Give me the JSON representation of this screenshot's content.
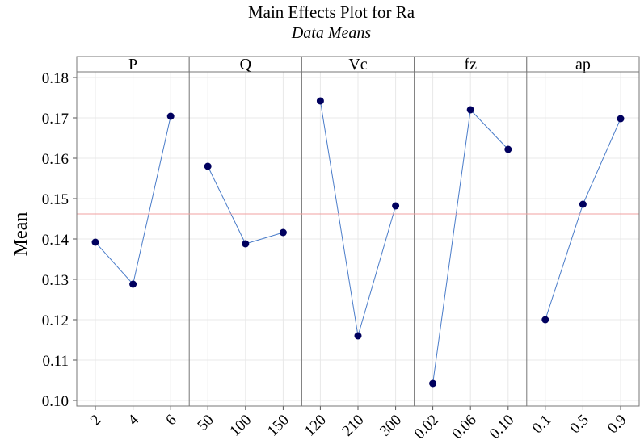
{
  "chart_data": {
    "type": "line",
    "title": "Main Effects Plot for Ra",
    "subtitle": "Data Means",
    "ylabel": "Mean",
    "ylim": [
      0.0986,
      0.1814
    ],
    "yticks": [
      {
        "value": 0.1,
        "label": "0.10"
      },
      0.11,
      0.12,
      0.13,
      0.14,
      0.15,
      0.16,
      0.17,
      0.18
    ],
    "grid": true,
    "line_color": "#4a7cc9",
    "marker_color": "#00005e",
    "reference_line": 0.1462,
    "reference_color": "#f0a0a0",
    "panels": [
      {
        "name": "P",
        "categories": [
          "2",
          "4",
          "6"
        ],
        "values": [
          0.1392,
          0.1288,
          0.1704
        ]
      },
      {
        "name": "Q",
        "categories": [
          "50",
          "100",
          "150"
        ],
        "values": [
          0.158,
          0.1388,
          0.1416
        ]
      },
      {
        "name": "Vc",
        "categories": [
          "120",
          "210",
          "300"
        ],
        "values": [
          0.1742,
          0.116,
          0.1482
        ]
      },
      {
        "name": "fz",
        "categories": [
          "0.02",
          "0.06",
          "0.10"
        ],
        "values": [
          0.1042,
          0.172,
          0.1622
        ]
      },
      {
        "name": "ap",
        "categories": [
          "0.1",
          "0.5",
          "0.9"
        ],
        "values": [
          0.12,
          0.1486,
          0.1698
        ]
      }
    ]
  }
}
